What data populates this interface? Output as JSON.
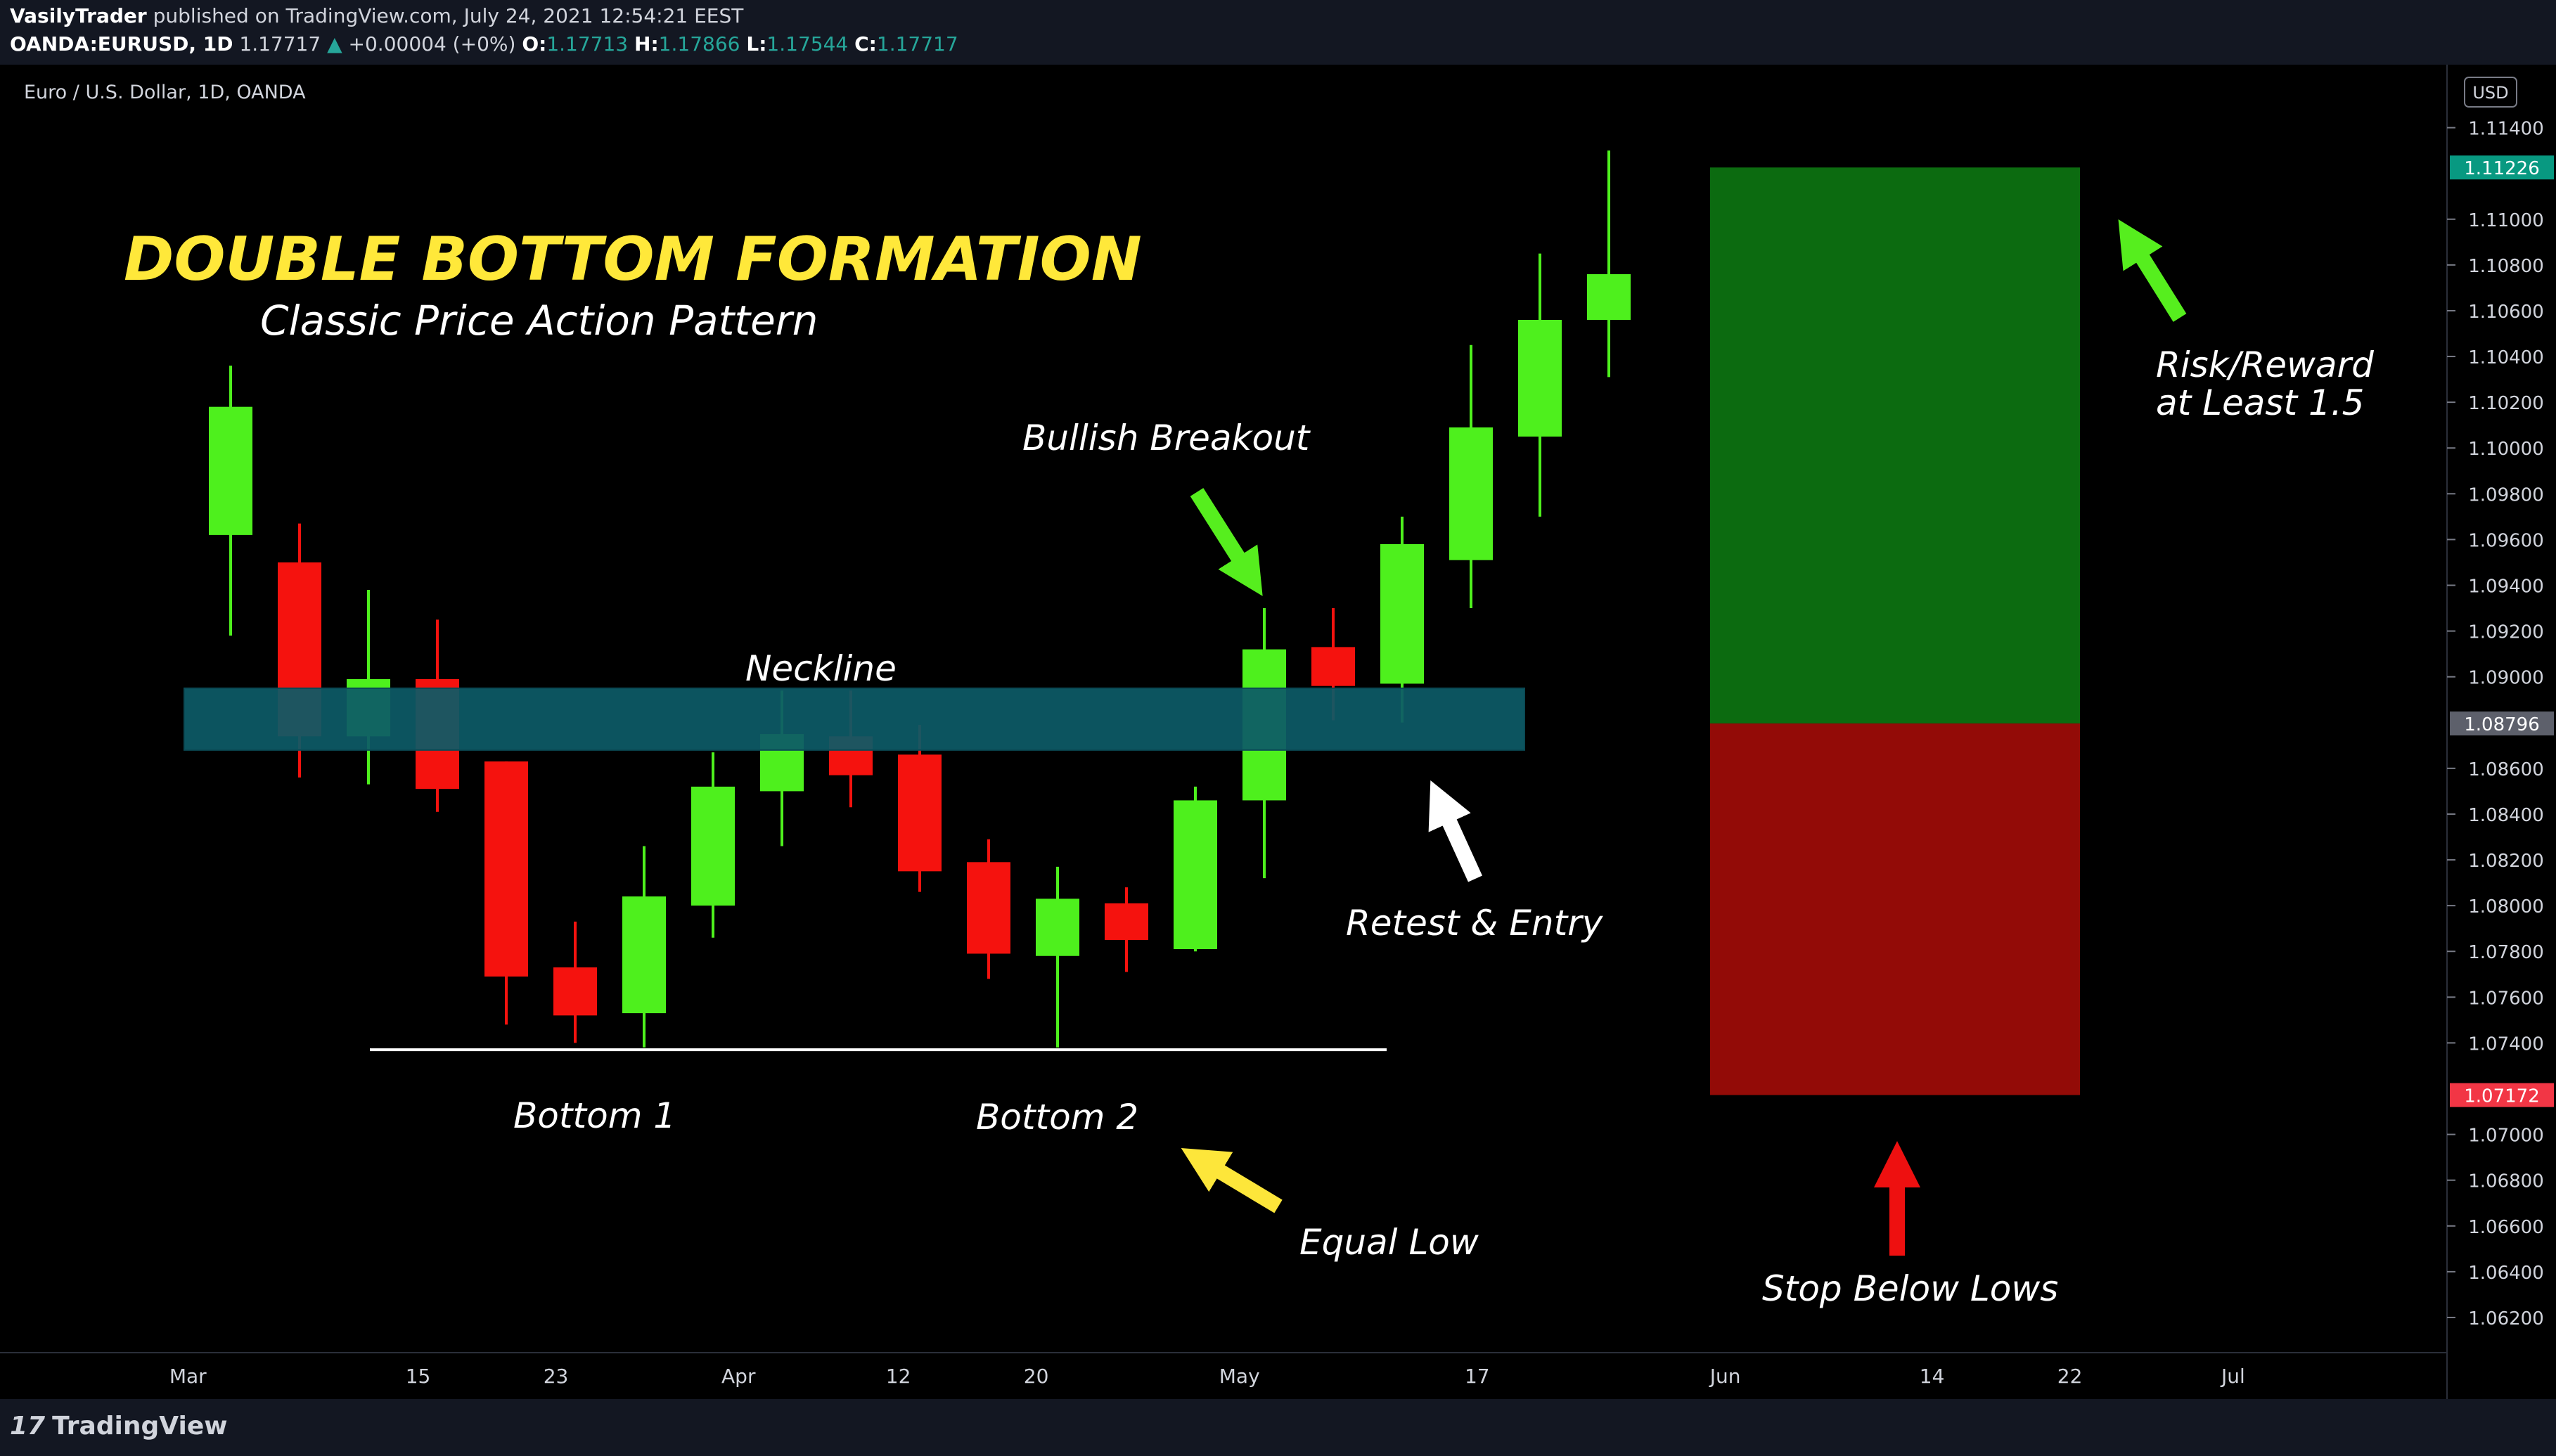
{
  "header": {
    "author": "VasilyTrader",
    "published_text": "published on TradingView.com, July 24, 2021 12:54:21 EEST",
    "symbol": "OANDA:EURUSD, 1D",
    "last_price": "1.17717",
    "change_arrow": "▲",
    "change": "+0.00004 (+0%)",
    "o_label": "O:",
    "o_value": "1.17713",
    "h_label": "H:",
    "h_value": "1.17866",
    "l_label": "L:",
    "l_value": "1.17544",
    "c_label": "C:",
    "c_value": "1.17717"
  },
  "footer": {
    "logo_mark": "17",
    "logo_text": "TradingView"
  },
  "chart_data": {
    "type": "candlestick",
    "subtitle": "Euro / U.S. Dollar, 1D, OANDA",
    "currency_label": "USD",
    "title": "DOUBLE BOTTOM FORMATION",
    "title_sub": "Classic Price Action Pattern",
    "ylim": [
      1.0612,
      1.1162
    ],
    "y_ticks": [
      "1.11400",
      "1.11000",
      "1.10800",
      "1.10600",
      "1.10400",
      "1.10200",
      "1.10000",
      "1.09800",
      "1.09600",
      "1.09400",
      "1.09200",
      "1.09000",
      "1.08600",
      "1.08400",
      "1.08200",
      "1.08000",
      "1.07800",
      "1.07600",
      "1.07400",
      "1.07000",
      "1.06800",
      "1.06600",
      "1.06400",
      "1.06200"
    ],
    "y_tick_values": [
      1.114,
      1.11,
      1.108,
      1.106,
      1.104,
      1.102,
      1.1,
      1.098,
      1.096,
      1.094,
      1.092,
      1.09,
      1.086,
      1.084,
      1.082,
      1.08,
      1.078,
      1.076,
      1.074,
      1.07,
      1.068,
      1.066,
      1.064,
      1.062
    ],
    "x_ticks": [
      "15",
      "Mar",
      "15",
      "23",
      "Apr",
      "12",
      "20",
      "May",
      "17",
      "Jun",
      "14",
      "22",
      "Jul"
    ],
    "x_tick_index": [
      -4.14,
      -0.62,
      2.72,
      4.72,
      7.37,
      9.69,
      11.69,
      14.64,
      18.09,
      21.69,
      24.69,
      26.69,
      29.06
    ],
    "candles": [
      {
        "o": 1.0962,
        "h": 1.1036,
        "l": 1.0918,
        "c": 1.1018
      },
      {
        "o": 1.095,
        "h": 1.0967,
        "l": 1.0856,
        "c": 1.0874
      },
      {
        "o": 1.0874,
        "h": 1.0938,
        "l": 1.0853,
        "c": 1.0899
      },
      {
        "o": 1.0899,
        "h": 1.0925,
        "l": 1.0841,
        "c": 1.0851
      },
      {
        "o": 1.0863,
        "h": 1.0863,
        "l": 1.0748,
        "c": 1.0769
      },
      {
        "o": 1.0773,
        "h": 1.0793,
        "l": 1.074,
        "c": 1.0752
      },
      {
        "o": 1.0753,
        "h": 1.0826,
        "l": 1.0738,
        "c": 1.0804
      },
      {
        "o": 1.08,
        "h": 1.0867,
        "l": 1.0786,
        "c": 1.0852
      },
      {
        "o": 1.085,
        "h": 1.0894,
        "l": 1.0826,
        "c": 1.0875
      },
      {
        "o": 1.0874,
        "h": 1.0894,
        "l": 1.0843,
        "c": 1.0857
      },
      {
        "o": 1.0866,
        "h": 1.0879,
        "l": 1.0806,
        "c": 1.0815
      },
      {
        "o": 1.0819,
        "h": 1.0829,
        "l": 1.0768,
        "c": 1.0779
      },
      {
        "o": 1.0778,
        "h": 1.0817,
        "l": 1.0738,
        "c": 1.0803
      },
      {
        "o": 1.0801,
        "h": 1.0808,
        "l": 1.0771,
        "c": 1.0785
      },
      {
        "o": 1.0781,
        "h": 1.0852,
        "l": 1.078,
        "c": 1.0846
      },
      {
        "o": 1.0846,
        "h": 1.093,
        "l": 1.0812,
        "c": 1.0912
      },
      {
        "o": 1.0913,
        "h": 1.093,
        "l": 1.0881,
        "c": 1.0896
      },
      {
        "o": 1.0897,
        "h": 1.097,
        "l": 1.088,
        "c": 1.0958
      },
      {
        "o": 1.0951,
        "h": 1.1045,
        "l": 1.093,
        "c": 1.1009
      },
      {
        "o": 1.1005,
        "h": 1.1085,
        "l": 1.097,
        "c": 1.1056
      },
      {
        "o": 1.1056,
        "h": 1.113,
        "l": 1.1031,
        "c": 1.1076
      }
    ],
    "neckline_zone": {
      "top": 1.0895,
      "bottom": 1.0868,
      "label": "Neckline"
    },
    "equal_low_line": {
      "value": 1.0737,
      "label_1": "Bottom 1",
      "label_2": "Bottom 2"
    },
    "position_tool": {
      "target": 1.11226,
      "entry": 1.08796,
      "stop": 1.07172
    },
    "price_badges": [
      {
        "text": "1.11226",
        "value": 1.11226,
        "color": "#089981"
      },
      {
        "text": "1.08796",
        "value": 1.08796,
        "color": "#5d606b"
      },
      {
        "text": "1.07172",
        "value": 1.07172,
        "color": "#f23645"
      }
    ],
    "annotations": {
      "bullish_breakout": "Bullish Breakout",
      "retest_entry": "Retest & Entry",
      "equal_low": "Equal Low",
      "rr_line1": "Risk/Reward",
      "rr_line2": "at Least 1.5",
      "stop_below": "Stop Below Lows"
    },
    "colors": {
      "up": "#4ef01d",
      "down": "#f5120e",
      "neckline": "#0d5a66",
      "target_zone": "#0c6b10",
      "stop_zone": "#930b07",
      "title": "#ffe83a",
      "arrow_green": "#56ee1e",
      "arrow_yellow": "#fde63a",
      "arrow_red": "#ee1010",
      "arrow_white": "#ffffff"
    }
  }
}
